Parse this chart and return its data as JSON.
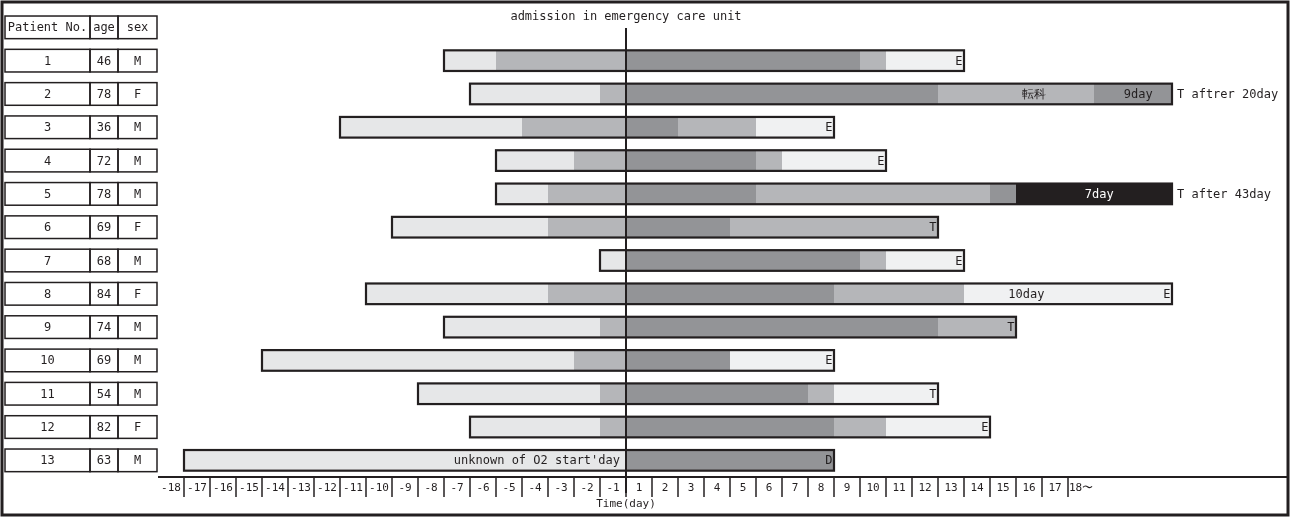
{
  "chart_data": {
    "type": "bar",
    "orientation": "horizontal",
    "stacked": true,
    "ylabel": "Patient No.",
    "xlabel": "Time(day)",
    "categories": [
      "1",
      "2",
      "3",
      "4",
      "5",
      "6",
      "7",
      "8",
      "9",
      "10",
      "11",
      "12",
      "13"
    ],
    "series": [
      {
        "color": "#b5b6b9",
        "values": [
          -5,
          -1,
          -4,
          -2,
          -3,
          -3,
          null,
          -3,
          -1,
          -2,
          -1,
          -1,
          null
        ]
      },
      {
        "color": "#e6e7e8",
        "values": [
          -2,
          -5,
          -7,
          -3,
          -2,
          -6,
          -1,
          -7,
          -6,
          -12,
          -7,
          -5,
          -17
        ]
      },
      {
        "color": "#939497",
        "values": [
          9,
          12,
          2,
          5,
          5,
          4,
          9,
          8,
          12,
          4,
          7,
          8,
          8
        ]
      },
      {
        "color": "#b5b6b9",
        "values": [
          1,
          6,
          3,
          1,
          9,
          8,
          1,
          5,
          3,
          null,
          1,
          2,
          null
        ]
      },
      {
        "color": "#939497",
        "values": [
          null,
          3,
          null,
          null,
          1,
          null,
          null,
          null,
          null,
          null,
          null,
          null,
          null
        ]
      },
      {
        "color": "#231f20",
        "values": [
          null,
          null,
          null,
          null,
          6,
          null,
          null,
          null,
          null,
          null,
          null,
          null,
          null
        ]
      },
      {
        "color": "#f0f1f2",
        "values": [
          3,
          null,
          3,
          4,
          null,
          null,
          3,
          8,
          null,
          4,
          4,
          4,
          null
        ]
      }
    ],
    "xlim": [
      -18,
      25.5
    ],
    "xticks": [
      {
        "value": -17.5,
        "label": "-18"
      },
      {
        "value": -16.5,
        "label": "-17"
      },
      {
        "value": -15.5,
        "label": "-16"
      },
      {
        "value": -14.5,
        "label": "-15"
      },
      {
        "value": -13.5,
        "label": "-14"
      },
      {
        "value": -12.5,
        "label": "-13"
      },
      {
        "value": -11.5,
        "label": "-12"
      },
      {
        "value": -10.5,
        "label": "-11"
      },
      {
        "value": -9.5,
        "label": "-10"
      },
      {
        "value": -8.5,
        "label": "-9"
      },
      {
        "value": -7.5,
        "label": "-8"
      },
      {
        "value": -6.5,
        "label": "-7"
      },
      {
        "value": -5.5,
        "label": "-6"
      },
      {
        "value": -4.5,
        "label": "-5"
      },
      {
        "value": -3.5,
        "label": "-4"
      },
      {
        "value": -2.5,
        "label": "-3"
      },
      {
        "value": -1.5,
        "label": "-2"
      },
      {
        "value": -0.5,
        "label": "-1"
      },
      {
        "value": 0.5,
        "label": "1"
      },
      {
        "value": 1.5,
        "label": "2"
      },
      {
        "value": 2.5,
        "label": "3"
      },
      {
        "value": 3.5,
        "label": "4"
      },
      {
        "value": 4.5,
        "label": "5"
      },
      {
        "value": 5.5,
        "label": "6"
      },
      {
        "value": 6.5,
        "label": "7"
      },
      {
        "value": 7.5,
        "label": "8"
      },
      {
        "value": 8.5,
        "label": "9"
      },
      {
        "value": 9.5,
        "label": "10"
      },
      {
        "value": 10.5,
        "label": "11"
      },
      {
        "value": 11.5,
        "label": "12"
      },
      {
        "value": 12.5,
        "label": "13"
      },
      {
        "value": 13.5,
        "label": "14"
      },
      {
        "value": 14.5,
        "label": "15"
      },
      {
        "value": 15.5,
        "label": "16"
      },
      {
        "value": 16.5,
        "label": "17"
      },
      {
        "value": 17.5,
        "label": "18〜"
      }
    ],
    "ref_lines": [
      {
        "axis": "x",
        "value": 0,
        "label": "admission in emergency care unit"
      }
    ],
    "annotations": [
      "age",
      "sex",
      "46",
      "M",
      "78",
      "F",
      "36",
      "M",
      "72",
      "M",
      "78",
      "M",
      "69",
      "F",
      "68",
      "M",
      "84",
      "F",
      "74",
      "M",
      "69",
      "M",
      "54",
      "M",
      "82",
      "F",
      "63",
      "M",
      {
        "text": "E",
        "x": 12.8,
        "y": "1"
      },
      {
        "text": "転科",
        "x": 15.7,
        "y": "2"
      },
      {
        "text": "9day",
        "x": 19.7,
        "y": "2"
      },
      {
        "text": "T aftrer 20day",
        "x": 21,
        "y": "2"
      },
      {
        "text": "E",
        "x": 7.8,
        "y": "3"
      },
      {
        "text": "E",
        "x": 9.8,
        "y": "4"
      },
      {
        "text": "7day",
        "x": 18.2,
        "y": "5"
      },
      {
        "text": "T after 43day",
        "x": 21,
        "y": "5"
      },
      {
        "text": "T",
        "x": 11.8,
        "y": "6"
      },
      {
        "text": "E",
        "x": 12.8,
        "y": "7"
      },
      {
        "text": "10day",
        "x": 15.4,
        "y": "8"
      },
      {
        "text": "E",
        "x": 20.8,
        "y": "8"
      },
      {
        "text": "T",
        "x": 14.8,
        "y": "9"
      },
      {
        "text": "E",
        "x": 7.8,
        "y": "10"
      },
      {
        "text": "T",
        "x": 11.8,
        "y": "11"
      },
      {
        "text": "E",
        "x": 13.8,
        "y": "12"
      },
      {
        "text": "D",
        "x": 7.8,
        "y": "13"
      },
      {
        "text": "unknown of O2 start'day",
        "x": 0,
        "y": "13"
      }
    ]
  }
}
